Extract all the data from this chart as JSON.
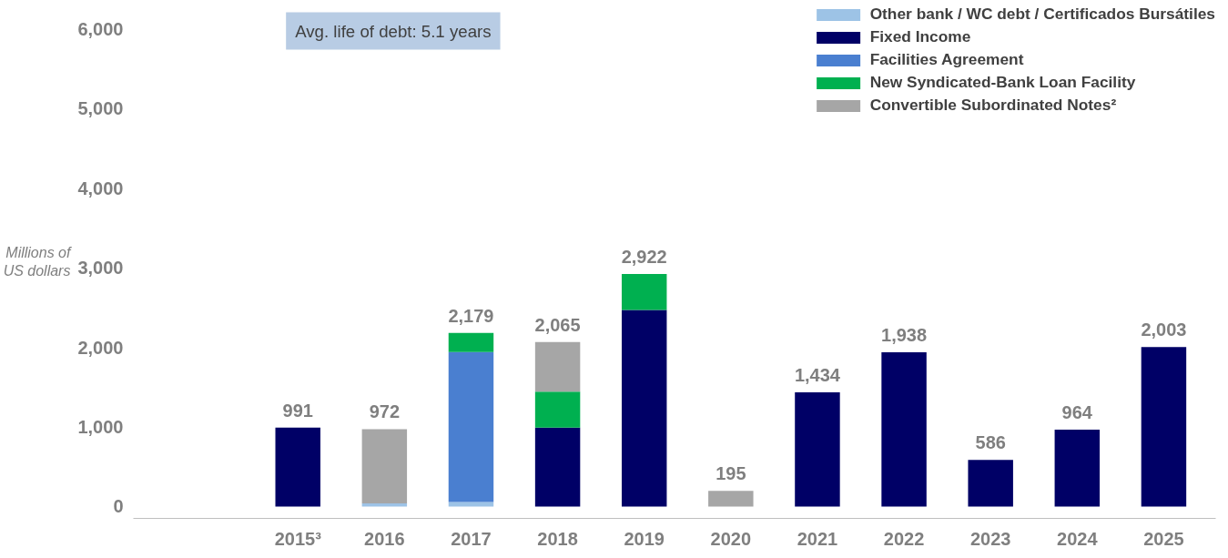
{
  "chart_data": {
    "type": "bar",
    "stacked": true,
    "categories": [
      "2015³",
      "2016",
      "2017",
      "2018",
      "2019",
      "2020",
      "2021",
      "2022",
      "2023",
      "2024",
      "2025"
    ],
    "ylabel": "Millions of US dollars",
    "series": [
      {
        "name": "Other bank / WC debt / Certificados Bursátiles",
        "color": "#9dc3e6",
        "values": [
          null,
          40,
          55,
          null,
          null,
          null,
          null,
          null,
          null,
          null,
          null
        ]
      },
      {
        "name": "Fixed Income",
        "color": "#000066",
        "values": [
          991,
          null,
          null,
          990,
          2470,
          null,
          1434,
          1938,
          586,
          964,
          2003
        ]
      },
      {
        "name": "Facilities Agreement",
        "color": "#4a7fd0",
        "values": [
          null,
          null,
          1885,
          null,
          null,
          null,
          null,
          null,
          null,
          null,
          null
        ]
      },
      {
        "name": "New Syndicated-Bank Loan Facility",
        "color": "#00b050",
        "values": [
          null,
          null,
          239,
          453,
          452,
          null,
          null,
          null,
          null,
          null,
          null
        ]
      },
      {
        "name": "Convertible Subordinated Notes²",
        "color": "#a6a6a6",
        "values": [
          null,
          932,
          null,
          622,
          null,
          195,
          null,
          null,
          null,
          null,
          null
        ]
      }
    ],
    "totals": [
      "991",
      "972",
      "2,179",
      "2,065",
      "2,922",
      "195",
      "1,434",
      "1,938",
      "586",
      "964",
      "2,003"
    ],
    "ylim": [
      -150,
      6300
    ],
    "yticks": [
      {
        "value": 0,
        "label": "0"
      },
      {
        "value": 1000,
        "label": "1,000"
      },
      {
        "value": 2000,
        "label": "2,000"
      },
      {
        "value": 3000,
        "label": "3,000"
      },
      {
        "value": 4000,
        "label": "4,000"
      },
      {
        "value": 5000,
        "label": "5,000"
      },
      {
        "value": 6000,
        "label": "6,000"
      }
    ],
    "annotations": [
      "Avg. life of debt: 5.1 years"
    ],
    "legend": "top right",
    "grid": false
  }
}
